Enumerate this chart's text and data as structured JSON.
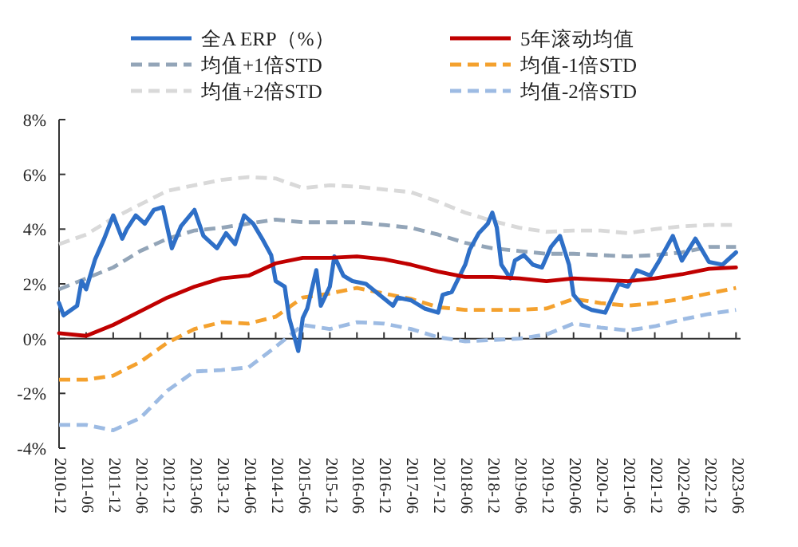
{
  "chart_data": {
    "type": "line",
    "legend": "top",
    "marker": "none",
    "xlim": [
      "2010-12",
      "2023-07"
    ],
    "ylim": [
      -4,
      8
    ],
    "yticks": [
      {
        "value": -4,
        "label": "-4%"
      },
      {
        "value": -2,
        "label": "-2%"
      },
      {
        "value": 0,
        "label": "0%"
      },
      {
        "value": 2,
        "label": "2%"
      },
      {
        "value": 4,
        "label": "4%"
      },
      {
        "value": 6,
        "label": "6%"
      },
      {
        "value": 8,
        "label": "8%"
      }
    ],
    "xticks": [
      "2010-12",
      "2011-06",
      "2011-12",
      "2012-06",
      "2012-12",
      "2013-06",
      "2013-12",
      "2014-06",
      "2014-12",
      "2015-06",
      "2015-12",
      "2016-06",
      "2016-12",
      "2017-06",
      "2017-12",
      "2018-06",
      "2018-12",
      "2019-06",
      "2019-12",
      "2020-06",
      "2020-12",
      "2021-06",
      "2021-12",
      "2022-06",
      "2022-12",
      "2023-06"
    ],
    "series": [
      {
        "name": "全A ERP（%）",
        "color": "#2e6fc7",
        "line_style": "solid",
        "x": [
          "2010-12",
          "2011-01",
          "2011-04",
          "2011-05",
          "2011-06",
          "2011-08",
          "2011-10",
          "2011-12",
          "2012-02",
          "2012-03",
          "2012-05",
          "2012-07",
          "2012-09",
          "2012-11",
          "2013-01",
          "2013-03",
          "2013-06",
          "2013-08",
          "2013-11",
          "2014-01",
          "2014-03",
          "2014-05",
          "2014-07",
          "2014-09",
          "2014-11",
          "2014-12",
          "2015-02",
          "2015-03",
          "2015-05",
          "2015-06",
          "2015-07",
          "2015-09",
          "2015-10",
          "2015-12",
          "2016-01",
          "2016-03",
          "2016-05",
          "2016-08",
          "2016-11",
          "2017-02",
          "2017-03",
          "2017-06",
          "2017-09",
          "2017-12",
          "2018-01",
          "2018-03",
          "2018-06",
          "2018-07",
          "2018-09",
          "2018-11",
          "2018-12",
          "2019-01",
          "2019-02",
          "2019-04",
          "2019-05",
          "2019-07",
          "2019-09",
          "2019-11",
          "2020-01",
          "2020-03",
          "2020-05",
          "2020-06",
          "2020-08",
          "2020-10",
          "2021-01",
          "2021-04",
          "2021-06",
          "2021-08",
          "2021-11",
          "2022-01",
          "2022-04",
          "2022-06",
          "2022-09",
          "2022-12",
          "2023-03",
          "2023-06"
        ],
        "values": [
          1.3,
          0.85,
          1.2,
          2.1,
          1.8,
          2.9,
          3.65,
          4.5,
          3.65,
          4.0,
          4.5,
          4.2,
          4.7,
          4.8,
          3.3,
          4.1,
          4.7,
          3.75,
          3.3,
          3.85,
          3.45,
          4.5,
          4.2,
          3.65,
          3.05,
          2.1,
          1.9,
          0.75,
          -0.45,
          0.75,
          1.1,
          2.5,
          1.2,
          1.9,
          3.0,
          2.3,
          2.1,
          2.0,
          1.6,
          1.2,
          1.5,
          1.4,
          1.1,
          0.95,
          1.6,
          1.7,
          2.7,
          3.25,
          3.85,
          4.2,
          4.6,
          4.05,
          2.7,
          2.2,
          2.85,
          3.05,
          2.7,
          2.6,
          3.35,
          3.75,
          2.7,
          1.6,
          1.2,
          1.05,
          0.95,
          2.0,
          1.9,
          2.5,
          2.3,
          2.85,
          3.75,
          2.85,
          3.65,
          2.8,
          2.7,
          3.15
        ]
      },
      {
        "name": "5年滚动均值",
        "color": "#c00000",
        "line_style": "solid",
        "values": [
          0.2,
          0.1,
          0.5,
          1.0,
          1.5,
          1.9,
          2.2,
          2.3,
          2.75,
          2.95,
          2.95,
          3.0,
          2.9,
          2.7,
          2.45,
          2.25,
          2.25,
          2.2,
          2.1,
          2.2,
          2.15,
          2.1,
          2.2,
          2.35,
          2.55,
          2.6
        ]
      },
      {
        "name": "均值+1倍STD",
        "color": "#93a5b8",
        "line_style": "dashed",
        "values": [
          1.8,
          2.2,
          2.6,
          3.2,
          3.65,
          3.95,
          4.05,
          4.2,
          4.35,
          4.25,
          4.25,
          4.25,
          4.15,
          4.05,
          3.8,
          3.5,
          3.3,
          3.2,
          3.1,
          3.1,
          3.05,
          3.0,
          3.05,
          3.15,
          3.35,
          3.35
        ]
      },
      {
        "name": "均值-1倍STD",
        "color": "#f4a12e",
        "line_style": "dashed",
        "values": [
          -1.5,
          -1.5,
          -1.35,
          -0.85,
          -0.15,
          0.35,
          0.6,
          0.55,
          0.8,
          1.5,
          1.65,
          1.85,
          1.65,
          1.45,
          1.15,
          1.05,
          1.05,
          1.05,
          1.1,
          1.45,
          1.3,
          1.2,
          1.3,
          1.45,
          1.65,
          1.85
        ]
      },
      {
        "name": "均值+2倍STD",
        "color": "#d9d9d9",
        "line_style": "dashed",
        "values": [
          3.45,
          3.8,
          4.4,
          4.9,
          5.4,
          5.6,
          5.8,
          5.9,
          5.85,
          5.5,
          5.6,
          5.55,
          5.45,
          5.35,
          5.0,
          4.6,
          4.3,
          4.05,
          3.9,
          3.95,
          3.95,
          3.85,
          4.0,
          4.1,
          4.15,
          4.15
        ]
      },
      {
        "name": "均值-2倍STD",
        "color": "#9dbbe3",
        "line_style": "dashed",
        "values": [
          -3.15,
          -3.15,
          -3.35,
          -2.9,
          -1.9,
          -1.2,
          -1.15,
          -1.05,
          -0.3,
          0.5,
          0.35,
          0.6,
          0.55,
          0.35,
          0.05,
          -0.1,
          -0.05,
          0.0,
          0.15,
          0.55,
          0.4,
          0.3,
          0.45,
          0.7,
          0.9,
          1.05
        ]
      }
    ],
    "x": [
      "2010-12",
      "2011-06",
      "2011-12",
      "2012-06",
      "2012-12",
      "2013-06",
      "2013-12",
      "2014-06",
      "2014-12",
      "2015-06",
      "2015-12",
      "2016-06",
      "2016-12",
      "2017-06",
      "2017-12",
      "2018-06",
      "2018-12",
      "2019-06",
      "2019-12",
      "2020-06",
      "2020-12",
      "2021-06",
      "2021-12",
      "2022-06",
      "2022-12",
      "2023-06"
    ]
  }
}
